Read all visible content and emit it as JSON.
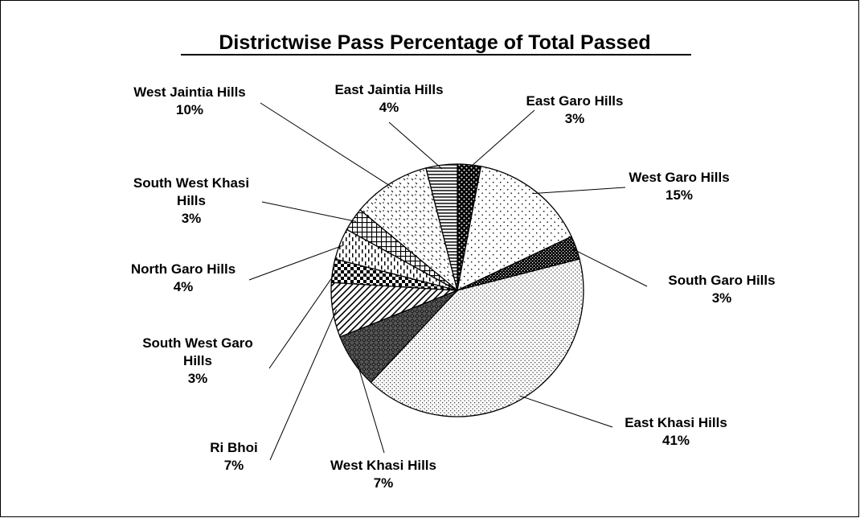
{
  "chart_data": {
    "type": "pie",
    "title": "Districtwise Pass Percentage of Total Passed",
    "start_angle_deg": 0,
    "direction": "clockwise",
    "legend": "none",
    "slices": [
      {
        "label_lines": [
          "East Garo Hills"
        ],
        "percent_label": "3%",
        "value": 3,
        "pattern": "black-white-dots"
      },
      {
        "label_lines": [
          "West Garo Hills"
        ],
        "percent_label": "15%",
        "value": 15,
        "pattern": "sparse-dots"
      },
      {
        "label_lines": [
          "South Garo Hills"
        ],
        "percent_label": "3%",
        "value": 3,
        "pattern": "dark-checker"
      },
      {
        "label_lines": [
          "East Khasi Hills"
        ],
        "percent_label": "41%",
        "value": 41,
        "pattern": "fine-dots"
      },
      {
        "label_lines": [
          "West Khasi Hills"
        ],
        "percent_label": "7%",
        "value": 7,
        "pattern": "dark-diamond"
      },
      {
        "label_lines": [
          "Ri Bhoi"
        ],
        "percent_label": "7%",
        "value": 7,
        "pattern": "diagonal-stripes"
      },
      {
        "label_lines": [
          "South West Garo",
          "Hills"
        ],
        "percent_label": "3%",
        "value": 3,
        "pattern": "large-checker"
      },
      {
        "label_lines": [
          "North Garo Hills"
        ],
        "percent_label": "4%",
        "value": 4,
        "pattern": "vertical-dashes"
      },
      {
        "label_lines": [
          "South West Khasi",
          "Hills"
        ],
        "percent_label": "3%",
        "value": 3,
        "pattern": "grid"
      },
      {
        "label_lines": [
          "West Jaintia Hills"
        ],
        "percent_label": "10%",
        "value": 10,
        "pattern": "diamond-dots"
      },
      {
        "label_lines": [
          "East Jaintia Hills"
        ],
        "percent_label": "4%",
        "value": 4,
        "pattern": "horizontal-stripes"
      }
    ]
  }
}
